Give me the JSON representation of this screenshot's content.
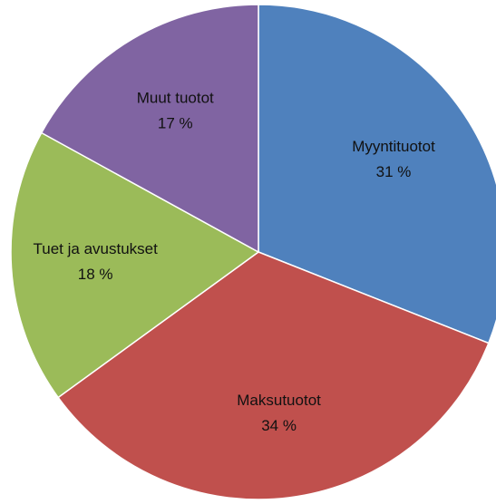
{
  "chart_data": {
    "type": "pie",
    "categories": [
      "Myyntituotot",
      "Maksutuotot",
      "Tuet ja avustukset",
      "Muut tuotot"
    ],
    "values": [
      31,
      34,
      18,
      17
    ],
    "value_labels": [
      "31 %",
      "34 %",
      "18 %",
      "17 %"
    ],
    "colors": [
      "#4f81bd",
      "#c0504d",
      "#9bbb59",
      "#8064a2"
    ]
  }
}
